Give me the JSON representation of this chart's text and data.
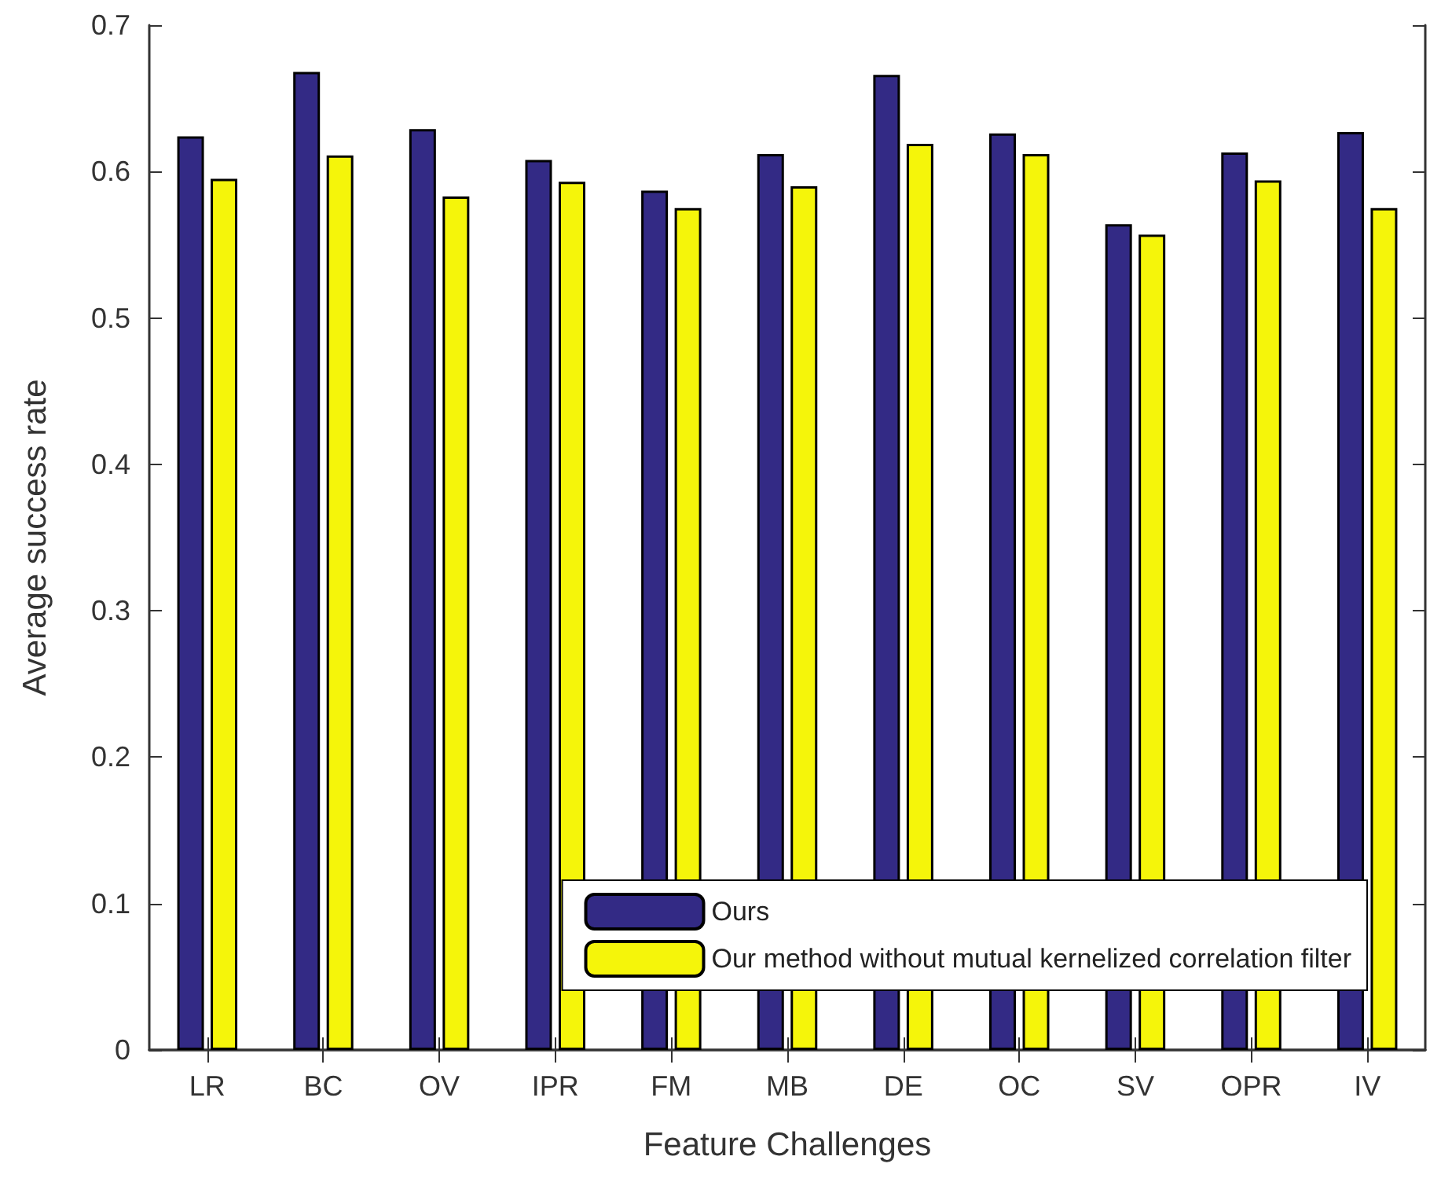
{
  "chart_data": {
    "type": "bar",
    "xlabel": "Feature Challenges",
    "ylabel": "Average success rate",
    "categories": [
      "LR",
      "BC",
      "OV",
      "IPR",
      "FM",
      "MB",
      "DE",
      "OC",
      "SV",
      "OPR",
      "IV"
    ],
    "series": [
      {
        "name": "Ours",
        "color": "#332a85",
        "values": [
          0.624,
          0.668,
          0.629,
          0.608,
          0.587,
          0.612,
          0.666,
          0.626,
          0.564,
          0.613,
          0.627
        ]
      },
      {
        "name": "Our method without mutual kernelized correlation filter",
        "color": "#f5f50a",
        "values": [
          0.595,
          0.611,
          0.583,
          0.593,
          0.575,
          0.59,
          0.619,
          0.612,
          0.557,
          0.594,
          0.575
        ]
      }
    ],
    "ylim": [
      0,
      0.7
    ],
    "yticks": [
      0,
      0.1,
      0.2,
      0.3,
      0.4,
      0.5,
      0.6,
      0.7
    ],
    "grid": false,
    "legend": "bottom right"
  }
}
